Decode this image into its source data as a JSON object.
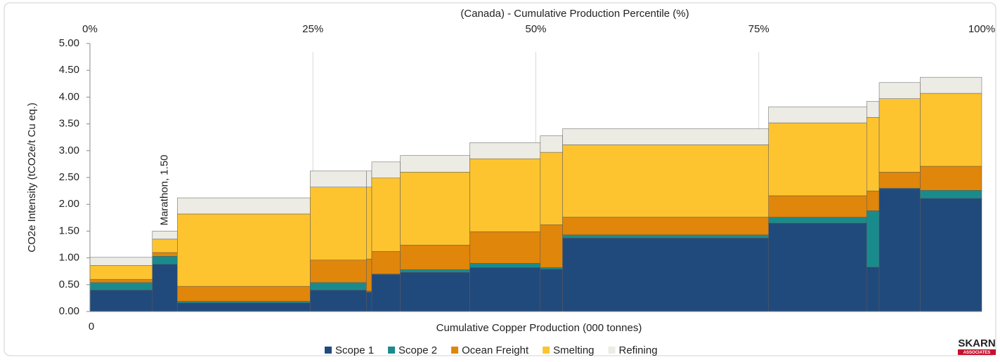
{
  "chart_data": {
    "type": "variable-width-stacked-bar",
    "x_axis_title": "(Canada) - Cumulative Production Percentile (%)",
    "bottom_axis_title": "Cumulative Copper Production (000 tonnes)",
    "y_axis_title": "CO2e Intensity (tCO2e/t Cu eq.)",
    "xlim": [
      0,
      100
    ],
    "xticks": [
      {
        "value": 0,
        "label": "0%"
      },
      {
        "value": 25,
        "label": "25%"
      },
      {
        "value": 50,
        "label": "50%"
      },
      {
        "value": 75,
        "label": "75%"
      },
      {
        "value": 100,
        "label": "100%"
      }
    ],
    "bottom_xticks": [
      0
    ],
    "x_grid": true,
    "ylim": [
      0,
      5
    ],
    "yticks": [
      {
        "value": 0,
        "label": "0.00"
      },
      {
        "value": 0.5,
        "label": "0.50"
      },
      {
        "value": 1,
        "label": "1.00"
      },
      {
        "value": 1.5,
        "label": "1.50"
      },
      {
        "value": 2,
        "label": "2.00"
      },
      {
        "value": 2.5,
        "label": "2.50"
      },
      {
        "value": 3,
        "label": "3.00"
      },
      {
        "value": 3.5,
        "label": "3.50"
      },
      {
        "value": 4,
        "label": "4.00"
      },
      {
        "value": 4.5,
        "label": "4.50"
      },
      {
        "value": 5,
        "label": "5.00"
      }
    ],
    "x_edges": [
      0,
      7.0,
      9.8,
      24.7,
      31.0,
      31.6,
      34.8,
      42.6,
      50.5,
      53.0,
      76.1,
      87.1,
      88.5,
      93.1,
      100
    ],
    "series": [
      {
        "name": "Scope 1",
        "color": "#214a7c",
        "values": [
          0.4,
          0.88,
          0.16,
          0.4,
          0.36,
          0.69,
          0.73,
          0.82,
          0.79,
          1.37,
          1.65,
          0.83,
          2.29,
          2.11
        ]
      },
      {
        "name": "Scope 2",
        "color": "#1a8b8c",
        "values": [
          0.14,
          0.15,
          0.03,
          0.14,
          0.02,
          0.01,
          0.05,
          0.08,
          0.03,
          0.06,
          0.11,
          1.05,
          0.01,
          0.15
        ]
      },
      {
        "name": "Ocean Freight",
        "color": "#e0860a",
        "values": [
          0.06,
          0.07,
          0.28,
          0.42,
          0.6,
          0.42,
          0.46,
          0.59,
          0.8,
          0.33,
          0.4,
          0.37,
          0.3,
          0.45
        ]
      },
      {
        "name": "Smelting",
        "color": "#fdc42f",
        "values": [
          0.26,
          0.25,
          1.35,
          1.36,
          1.34,
          1.37,
          1.36,
          1.36,
          1.35,
          1.35,
          1.36,
          1.37,
          1.37,
          1.36
        ]
      },
      {
        "name": "Refining",
        "color": "#ecebe4",
        "values": [
          0.15,
          0.15,
          0.3,
          0.3,
          0.3,
          0.3,
          0.31,
          0.3,
          0.31,
          0.3,
          0.3,
          0.3,
          0.3,
          0.3
        ]
      }
    ],
    "annotation": {
      "text": "Marathon, 1.50",
      "bar": 1
    },
    "logo": {
      "name": "SKARN",
      "sub": "ASSOCIATES"
    }
  }
}
